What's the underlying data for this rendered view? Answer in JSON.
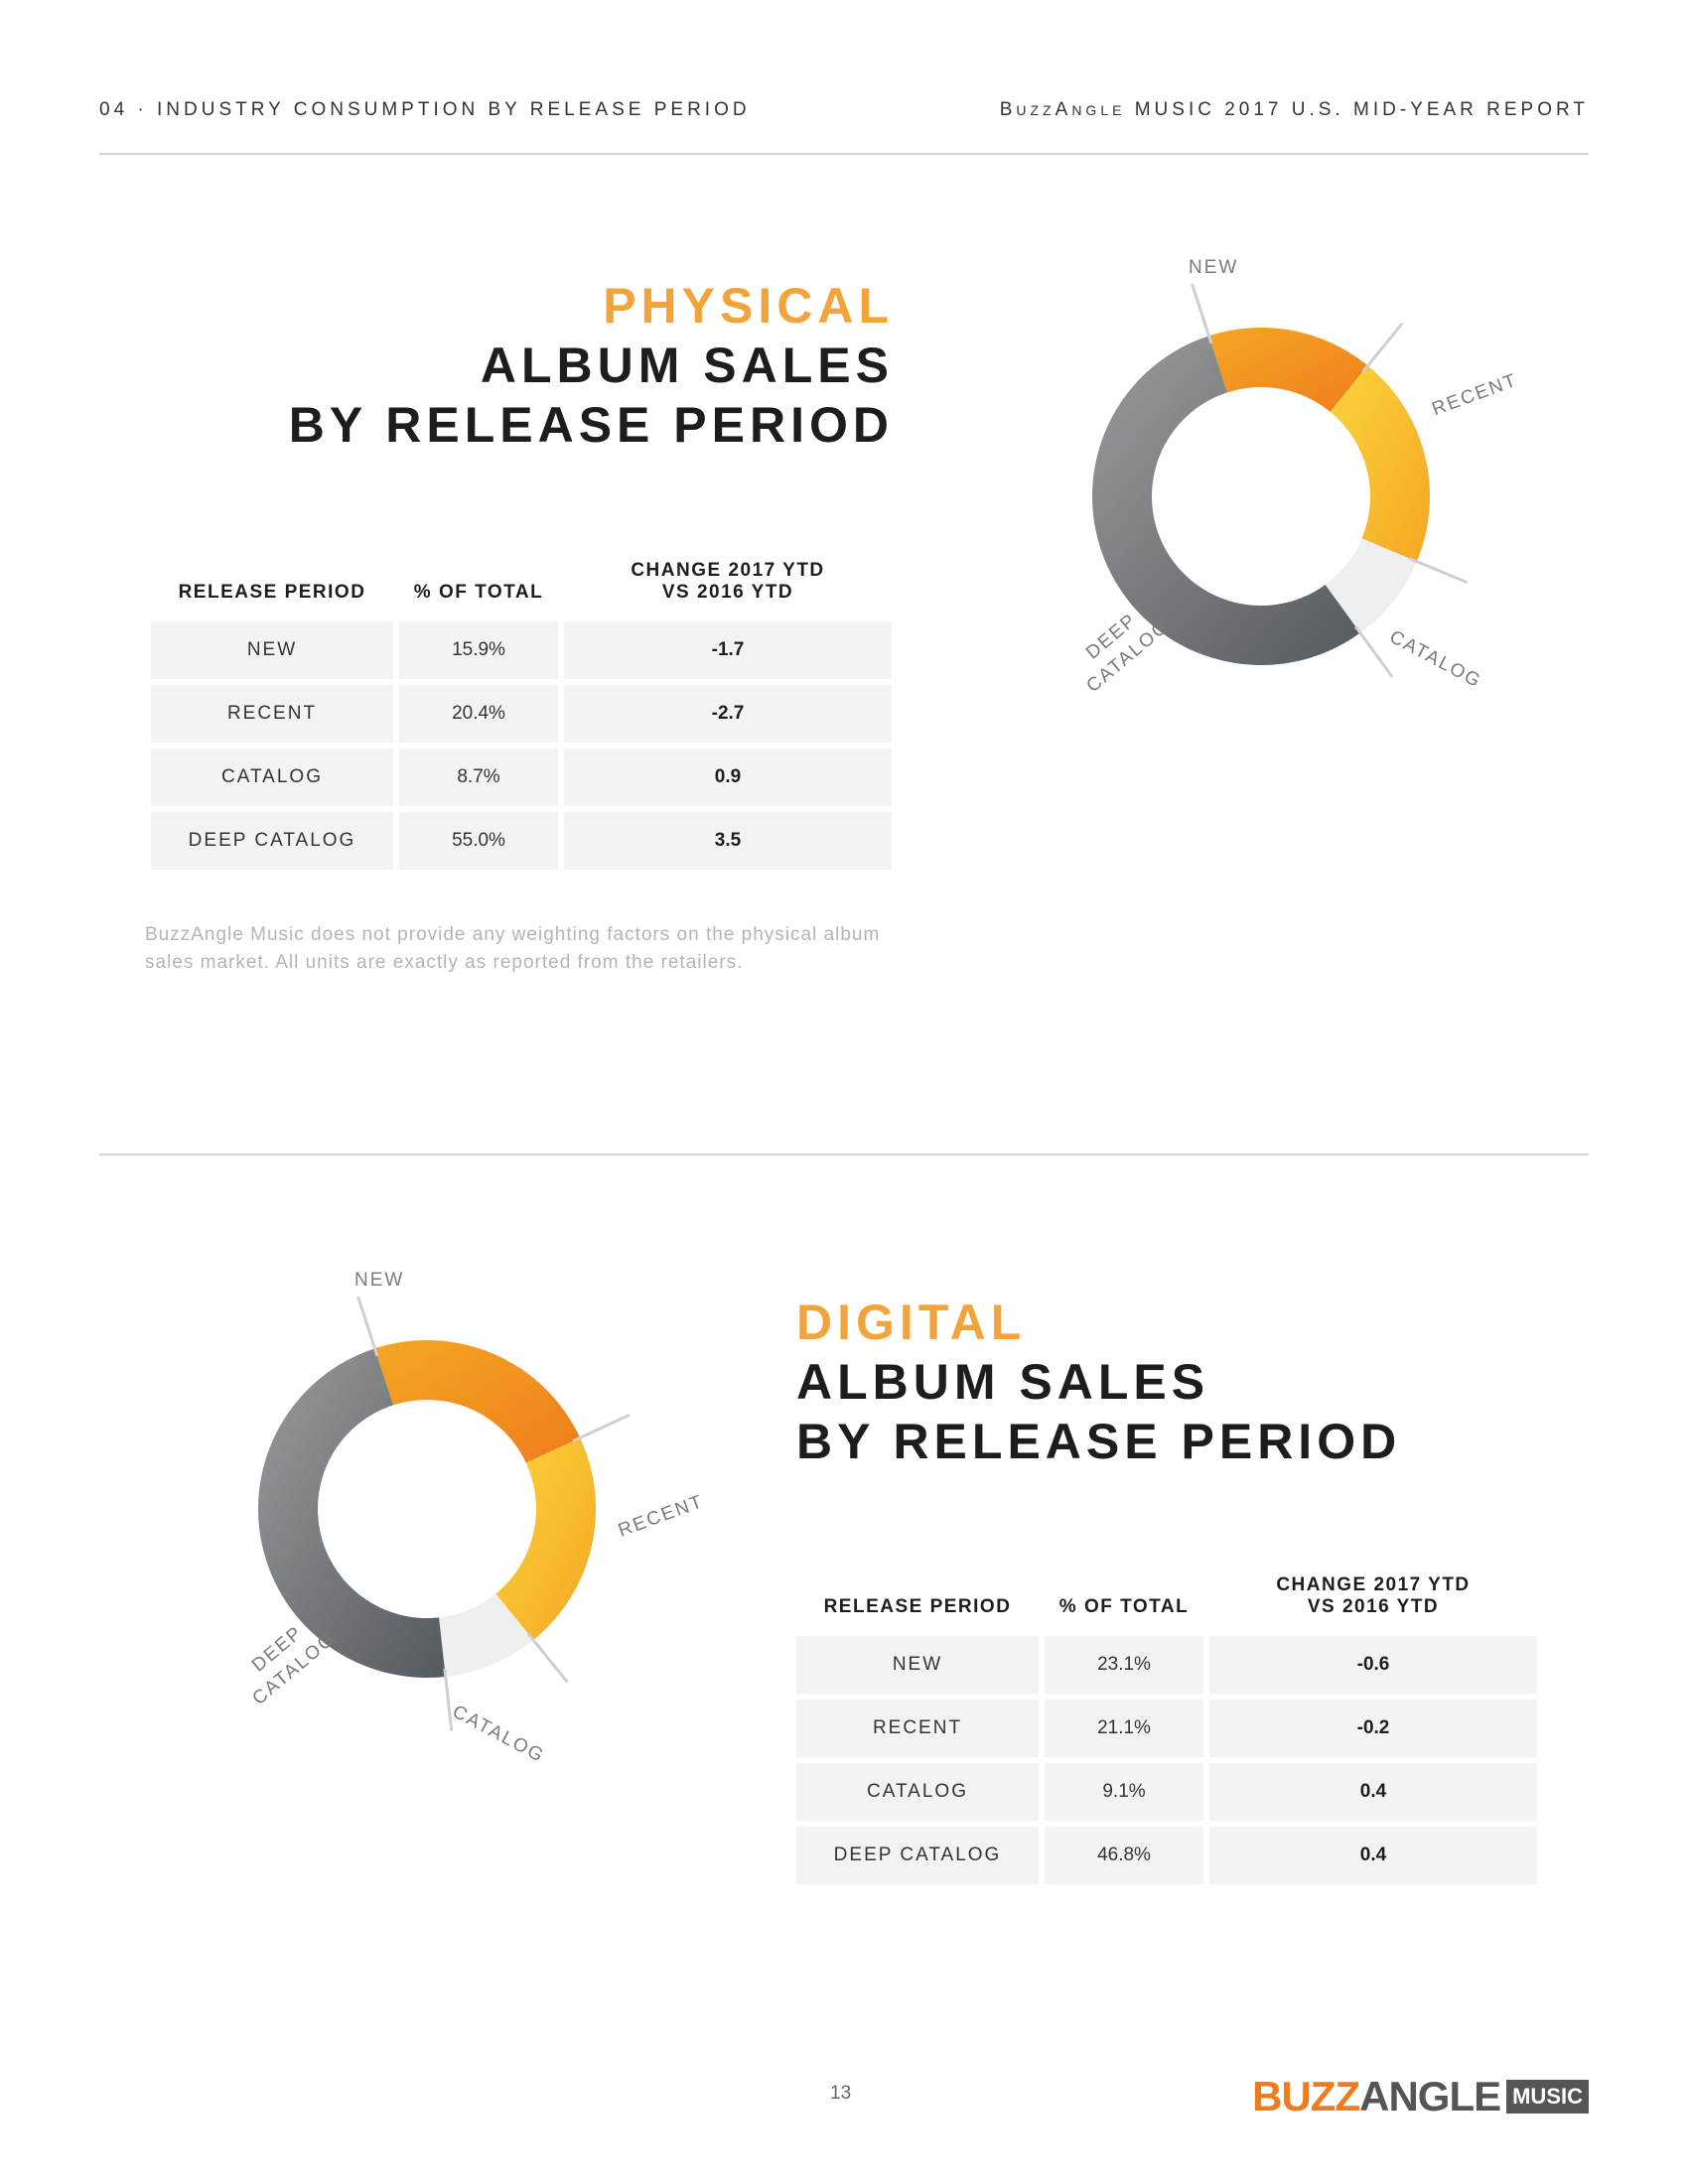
{
  "header": {
    "left": "04 · INDUSTRY CONSUMPTION BY RELEASE PERIOD",
    "right_brand_b": "B",
    "right_brand_uzz": "UZZ",
    "right_brand_a": "A",
    "right_brand_ngle": "NGLE",
    "right_rest": " MUSIC 2017 U.S. MID-YEAR REPORT"
  },
  "physical": {
    "title_accent": "PHYSICAL",
    "title_line2": "ALBUM SALES",
    "title_line3": "BY RELEASE PERIOD",
    "columns": [
      "RELEASE PERIOD",
      "% OF TOTAL",
      "CHANGE 2017 YTD",
      "VS 2016 YTD"
    ],
    "rows": [
      {
        "period": "NEW",
        "pct": "15.9%",
        "change": "-1.7"
      },
      {
        "period": "RECENT",
        "pct": "20.4%",
        "change": "-2.7"
      },
      {
        "period": "CATALOG",
        "pct": "8.7%",
        "change": "0.9"
      },
      {
        "period": "DEEP CATALOG",
        "pct": "55.0%",
        "change": "3.5"
      }
    ],
    "note": "BuzzAngle Music does not provide any weighting factors on the physical album sales market. All units are exactly as reported from the retailers.",
    "chart_labels": {
      "new": "NEW",
      "recent": "RECENT",
      "catalog": "CATALOG",
      "deep1": "DEEP",
      "deep2": "CATALOG"
    }
  },
  "digital": {
    "title_accent": "DIGITAL",
    "title_line2": "ALBUM SALES",
    "title_line3": "BY RELEASE PERIOD",
    "columns": [
      "RELEASE PERIOD",
      "% OF TOTAL",
      "CHANGE 2017 YTD",
      "VS 2016 YTD"
    ],
    "rows": [
      {
        "period": "NEW",
        "pct": "23.1%",
        "change": "-0.6"
      },
      {
        "period": "RECENT",
        "pct": "21.1%",
        "change": "-0.2"
      },
      {
        "period": "CATALOG",
        "pct": "9.1%",
        "change": "0.4"
      },
      {
        "period": "DEEP CATALOG",
        "pct": "46.8%",
        "change": "0.4"
      }
    ],
    "chart_labels": {
      "new": "NEW",
      "recent": "RECENT",
      "catalog": "CATALOG",
      "deep1": "DEEP",
      "deep2": "CATALOG"
    }
  },
  "chart_data": [
    {
      "type": "pie",
      "categories": [
        "NEW",
        "RECENT",
        "CATALOG",
        "DEEP CATALOG"
      ],
      "values": [
        15.9,
        20.4,
        8.7,
        55.0
      ],
      "colors": [
        "#f07b1f",
        "#f9c02e",
        "#efefef",
        "#7b7d80"
      ]
    },
    {
      "type": "pie",
      "categories": [
        "NEW",
        "RECENT",
        "CATALOG",
        "DEEP CATALOG"
      ],
      "values": [
        23.1,
        21.1,
        9.1,
        46.8
      ],
      "colors": [
        "#f07b1f",
        "#f9c02e",
        "#efefef",
        "#7b7d80"
      ]
    }
  ],
  "footer": {
    "page_number": "13",
    "logo_buzz": "BUZZ",
    "logo_angle": "ANGLE",
    "logo_music": "MUSIC"
  }
}
